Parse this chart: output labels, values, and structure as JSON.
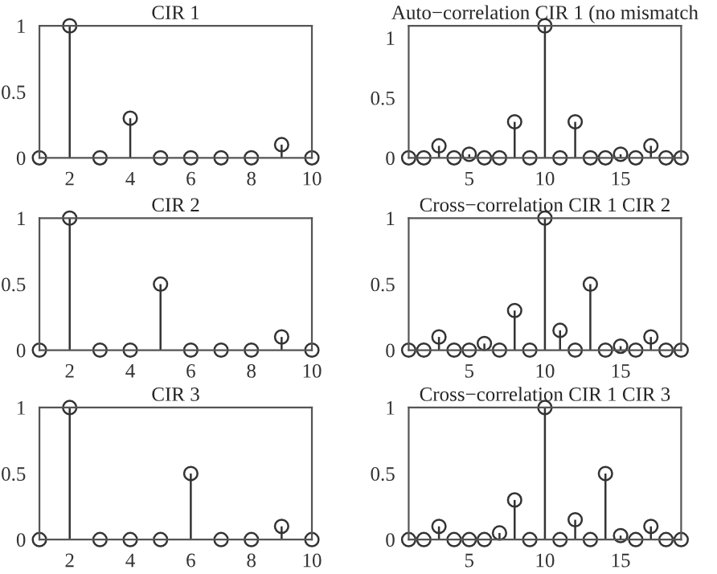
{
  "chart_data": [
    {
      "type": "lollipop",
      "title": "CIR 1",
      "x": [
        1,
        2,
        3,
        4,
        5,
        6,
        7,
        8,
        9,
        10
      ],
      "values": [
        0,
        1,
        0,
        0.3,
        0,
        0,
        0,
        0,
        0.1,
        0
      ],
      "xlim": [
        1,
        10
      ],
      "xticks": [
        2,
        4,
        6,
        8,
        10
      ],
      "ylim": [
        0,
        1
      ],
      "yticks": [
        0,
        0.5,
        1
      ],
      "marker": "circle",
      "color": "#333333"
    },
    {
      "type": "lollipop",
      "title": "Auto−correlation CIR 1 (no mismatch",
      "x": [
        1,
        2,
        3,
        4,
        5,
        6,
        7,
        8,
        9,
        10,
        11,
        12,
        13,
        14,
        15,
        16,
        17,
        18,
        19
      ],
      "values": [
        0,
        0,
        0.1,
        0,
        0.03,
        0,
        0,
        0.3,
        0,
        1.1,
        0,
        0.3,
        0,
        0,
        0.03,
        0,
        0.1,
        0,
        0
      ],
      "xlim": [
        1,
        19
      ],
      "xticks": [
        5,
        10,
        15
      ],
      "ylim": [
        0,
        1.1
      ],
      "yticks": [
        0,
        0.5,
        1
      ],
      "marker": "circle",
      "color": "#333333"
    },
    {
      "type": "lollipop",
      "title": "CIR 2",
      "x": [
        1,
        2,
        3,
        4,
        5,
        6,
        7,
        8,
        9,
        10
      ],
      "values": [
        0,
        1,
        0,
        0,
        0.5,
        0,
        0,
        0,
        0.1,
        0
      ],
      "xlim": [
        1,
        10
      ],
      "xticks": [
        2,
        4,
        6,
        8,
        10
      ],
      "ylim": [
        0,
        1
      ],
      "yticks": [
        0,
        0.5,
        1
      ],
      "marker": "circle",
      "color": "#333333"
    },
    {
      "type": "lollipop",
      "title": "Cross−correlation CIR 1 CIR 2",
      "x": [
        1,
        2,
        3,
        4,
        5,
        6,
        7,
        8,
        9,
        10,
        11,
        12,
        13,
        14,
        15,
        16,
        17,
        18,
        19
      ],
      "values": [
        0,
        0,
        0.1,
        0,
        0,
        0.05,
        0,
        0.3,
        0,
        1,
        0.15,
        0,
        0.5,
        0,
        0.03,
        0,
        0.1,
        0,
        0
      ],
      "xlim": [
        1,
        19
      ],
      "xticks": [
        5,
        10,
        15
      ],
      "ylim": [
        0,
        1
      ],
      "yticks": [
        0,
        0.5,
        1
      ],
      "marker": "circle",
      "color": "#333333"
    },
    {
      "type": "lollipop",
      "title": "CIR 3",
      "x": [
        1,
        2,
        3,
        4,
        5,
        6,
        7,
        8,
        9,
        10
      ],
      "values": [
        0,
        1,
        0,
        0,
        0,
        0.5,
        0,
        0,
        0.1,
        0
      ],
      "xlim": [
        1,
        10
      ],
      "xticks": [
        2,
        4,
        6,
        8,
        10
      ],
      "ylim": [
        0,
        1
      ],
      "yticks": [
        0,
        0.5,
        1
      ],
      "marker": "circle",
      "color": "#333333"
    },
    {
      "type": "lollipop",
      "title": "Cross−correlation CIR 1 CIR 3",
      "x": [
        1,
        2,
        3,
        4,
        5,
        6,
        7,
        8,
        9,
        10,
        11,
        12,
        13,
        14,
        15,
        16,
        17,
        18,
        19
      ],
      "values": [
        0,
        0,
        0.1,
        0,
        0,
        0,
        0.05,
        0.3,
        0,
        1,
        0,
        0.15,
        0,
        0.5,
        0.03,
        0,
        0.1,
        0,
        0
      ],
      "xlim": [
        1,
        19
      ],
      "xticks": [
        5,
        10,
        15
      ],
      "ylim": [
        0,
        1
      ],
      "yticks": [
        0,
        0.5,
        1
      ],
      "marker": "circle",
      "color": "#333333"
    }
  ]
}
